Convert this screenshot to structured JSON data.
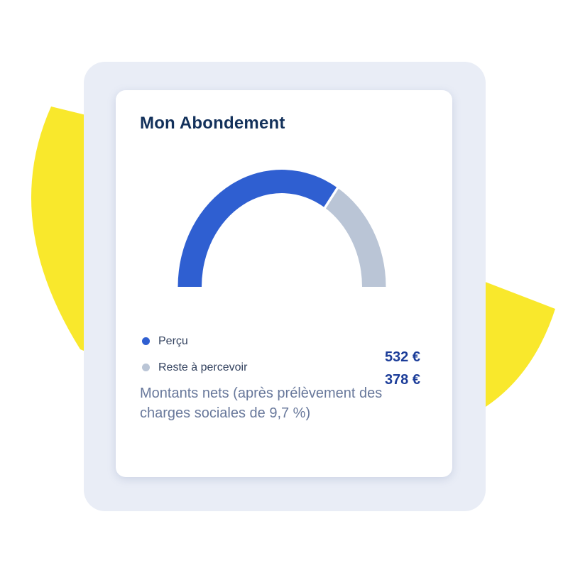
{
  "card": {
    "title": "Mon Abondement"
  },
  "chart_data": {
    "type": "pie",
    "variant": "half-doughnut-gauge",
    "title": "Mon Abondement",
    "unit": "EUR",
    "series": [
      {
        "name": "Perçu",
        "value": 532,
        "display": "532 €",
        "color": "#2f5fd1"
      },
      {
        "name": "Reste à percevoir",
        "value": 378,
        "display": "378 €",
        "color": "#bac5d6"
      }
    ],
    "visual_fraction_percu": 0.68,
    "legend_position": "bottom-left",
    "values_position": "bottom-right"
  },
  "footnote": {
    "line1": "Montants nets (après prélèvement des",
    "line2": "charges sociales de 9,7 %)"
  },
  "colors": {
    "accent_blue": "#2f5fd1",
    "muted_gray": "#bac5d6",
    "decor_yellow": "#f9e82c",
    "frame_bg": "#e9edf6",
    "title_text": "#13315b",
    "value_text": "#1c3d99",
    "footnote_text": "#68789b"
  }
}
